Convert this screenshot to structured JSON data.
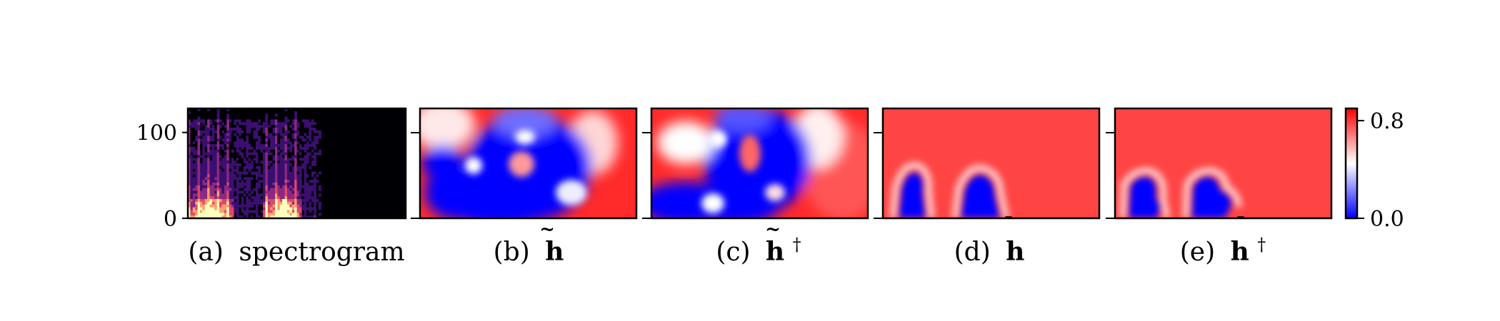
{
  "chart_data": [
    {
      "type": "heatmap",
      "panel": "a",
      "caption_prefix": "(a)",
      "caption_text": "spectrogram",
      "ylim": [
        0,
        128
      ],
      "yticks": [
        {
          "value": 0,
          "label": "0"
        },
        {
          "value": 100,
          "label": "100"
        }
      ],
      "time_fraction_with_signal": 0.6,
      "bursts": [
        {
          "center": 0.1,
          "width": 0.22
        },
        {
          "center": 0.43,
          "width": 0.18
        }
      ],
      "colormap": [
        "#000004",
        "#3b0f70",
        "#8c2981",
        "#de4968",
        "#fe9f6d",
        "#fcfdbf"
      ]
    },
    {
      "type": "heatmap",
      "panel": "b",
      "caption_prefix": "(b)",
      "caption_math": "h",
      "caption_accent": "~",
      "caption_sup": "",
      "description_blobs": [
        {
          "cx": 0.35,
          "cy": 0.55,
          "rx": 0.22,
          "ry": 0.4,
          "v": 0.0
        },
        {
          "cx": 0.2,
          "cy": 0.8,
          "rx": 0.12,
          "ry": 0.2,
          "v": 0.0
        }
      ]
    },
    {
      "type": "heatmap",
      "panel": "c",
      "caption_prefix": "(c)",
      "caption_math": "h",
      "caption_accent": "~",
      "caption_sup": "†"
    },
    {
      "type": "heatmap",
      "panel": "d",
      "caption_prefix": "(d)",
      "caption_math": "h",
      "caption_accent": "¯",
      "caption_sup": ""
    },
    {
      "type": "heatmap",
      "panel": "e",
      "caption_prefix": "(e)",
      "caption_math": "h",
      "caption_accent": "¯",
      "caption_sup": "†"
    }
  ],
  "colorbar": {
    "vmin": 0.0,
    "vmax": 0.9,
    "ticks": [
      {
        "value": 0.0,
        "label": "0.0"
      },
      {
        "value": 0.8,
        "label": "0.8"
      }
    ],
    "colors": {
      "low": "#0000ff",
      "mid": "#ffffff",
      "high": "#ff0000"
    }
  }
}
